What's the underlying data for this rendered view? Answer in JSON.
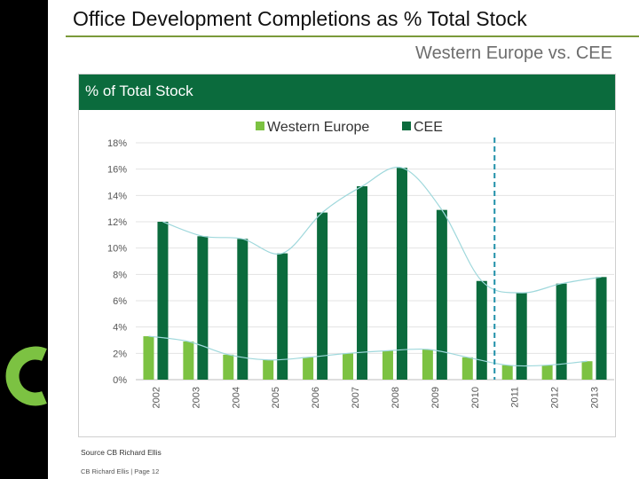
{
  "slide": {
    "title": "Office Development Completions as % Total Stock",
    "subtitle": "Western Europe vs. CEE",
    "source": "Source CB Richard Ellis",
    "footer": "CB Richard Ellis | Page 12"
  },
  "colors": {
    "western_europe": "#7cc242",
    "cee": "#0b6b3d",
    "trend": "#9fd8dc",
    "forecast_line": "#1f8fa8",
    "header": "#0b6b3d"
  },
  "chart_data": {
    "type": "bar",
    "title": "% of Total Stock",
    "categories": [
      "2002",
      "2003",
      "2004",
      "2005",
      "2006",
      "2007",
      "2008",
      "2009",
      "2010",
      "2011",
      "2012",
      "2013"
    ],
    "series": [
      {
        "name": "Western Europe",
        "values": [
          3.3,
          2.9,
          1.9,
          1.5,
          1.7,
          2.0,
          2.2,
          2.3,
          1.7,
          1.1,
          1.1,
          1.4
        ]
      },
      {
        "name": "CEE",
        "values": [
          12.0,
          10.9,
          10.7,
          9.6,
          12.7,
          14.7,
          16.1,
          12.9,
          7.5,
          6.6,
          7.3,
          7.8
        ]
      }
    ],
    "ylim": [
      0,
      18
    ],
    "yticks": [
      0,
      2,
      4,
      6,
      8,
      10,
      12,
      14,
      16,
      18
    ],
    "ytick_labels": [
      "0%",
      "2%",
      "4%",
      "6%",
      "8%",
      "10%",
      "12%",
      "14%",
      "16%",
      "18%"
    ],
    "trendlines": true,
    "forecast_divider_after": "2010",
    "legend_position": "top-center",
    "grid": "horizontal"
  }
}
